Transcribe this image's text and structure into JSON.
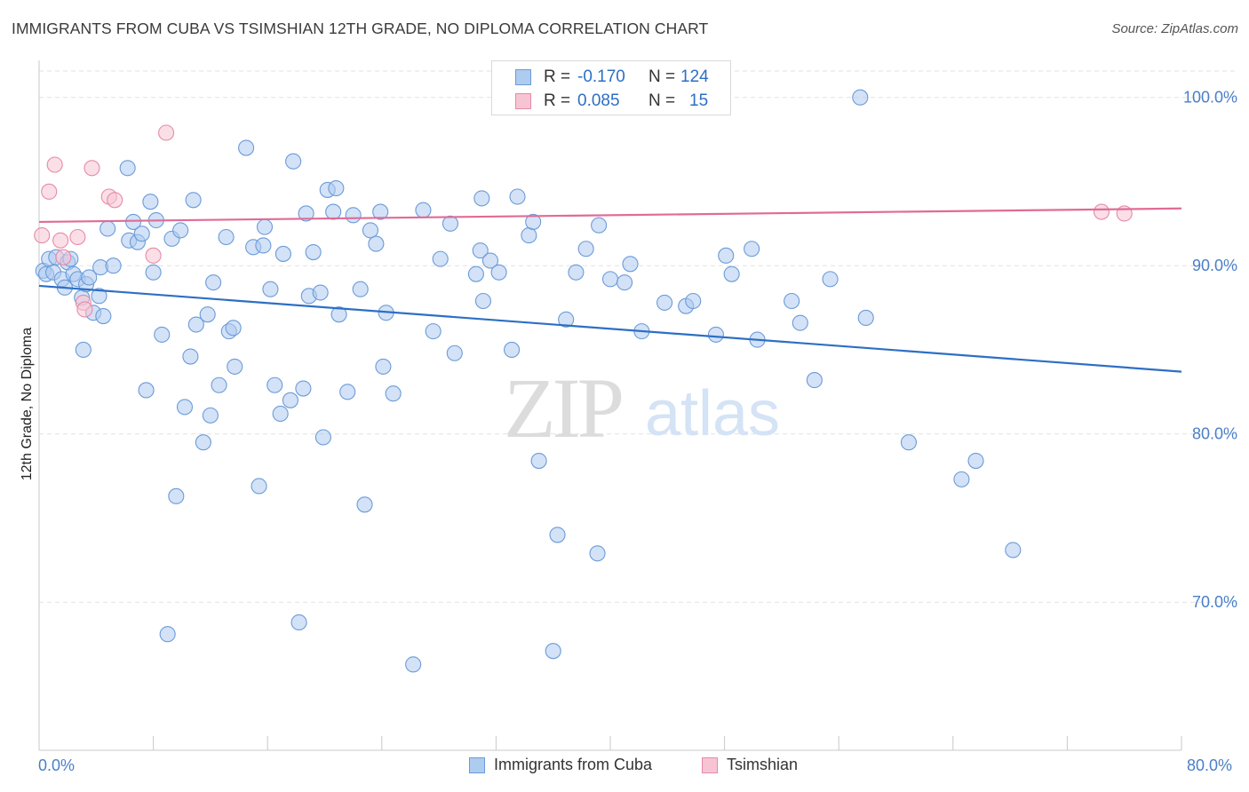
{
  "title": "IMMIGRANTS FROM CUBA VS TSIMSHIAN 12TH GRADE, NO DIPLOMA CORRELATION CHART",
  "source": "Source: ZipAtlas.com",
  "watermark": {
    "zip": "ZIP",
    "atlas": "atlas"
  },
  "legend_box": {
    "rows": [
      {
        "r_label": "R =",
        "r_value": "-0.170",
        "n_label": "N =",
        "n_value": "124",
        "color": "#aecbf0",
        "border": "#6b9bd8"
      },
      {
        "r_label": "R =",
        "r_value": "0.085",
        "n_label": "N =",
        "n_value": "15",
        "color": "#f7c4d4",
        "border": "#e68aa8"
      }
    ]
  },
  "chart_data": {
    "type": "scatter",
    "title": "IMMIGRANTS FROM CUBA VS TSIMSHIAN 12TH GRADE, NO DIPLOMA CORRELATION CHART",
    "xlabel": "",
    "ylabel": "12th Grade, No Diploma",
    "xlim": [
      0,
      80
    ],
    "ylim": [
      61.2,
      102.2
    ],
    "x_tick_labels": [
      "0.0%",
      "80.0%"
    ],
    "y_ticks": [
      70,
      80,
      90,
      100
    ],
    "y_tick_labels": [
      "70.0%",
      "80.0%",
      "90.0%",
      "100.0%"
    ],
    "grid": true,
    "legend_position": "bottom",
    "series": [
      {
        "name": "Immigrants from Cuba",
        "color": "#aecbf0",
        "stroke": "#6b9bd8",
        "line_color": "#2d6fc4",
        "trend": {
          "x": [
            0,
            80
          ],
          "y": [
            88.8,
            83.7
          ]
        },
        "points": [
          [
            0.3,
            89.7
          ],
          [
            0.5,
            89.5
          ],
          [
            0.7,
            90.4
          ],
          [
            1.0,
            89.6
          ],
          [
            1.2,
            90.5
          ],
          [
            1.6,
            89.2
          ],
          [
            1.8,
            88.7
          ],
          [
            2.0,
            90.2
          ],
          [
            2.2,
            90.4
          ],
          [
            2.4,
            89.5
          ],
          [
            2.7,
            89.2
          ],
          [
            3.0,
            88.1
          ],
          [
            3.1,
            85.0
          ],
          [
            3.3,
            88.9
          ],
          [
            3.5,
            89.3
          ],
          [
            3.8,
            87.2
          ],
          [
            4.2,
            88.2
          ],
          [
            4.3,
            89.9
          ],
          [
            4.5,
            87.0
          ],
          [
            4.8,
            92.2
          ],
          [
            5.2,
            90.0
          ],
          [
            6.2,
            95.8
          ],
          [
            6.3,
            91.5
          ],
          [
            6.6,
            92.6
          ],
          [
            6.9,
            91.4
          ],
          [
            7.2,
            91.9
          ],
          [
            7.5,
            82.6
          ],
          [
            7.8,
            93.8
          ],
          [
            8.0,
            89.6
          ],
          [
            8.2,
            92.7
          ],
          [
            8.6,
            85.9
          ],
          [
            9.0,
            68.1
          ],
          [
            9.3,
            91.6
          ],
          [
            9.6,
            76.3
          ],
          [
            9.9,
            92.1
          ],
          [
            10.2,
            81.6
          ],
          [
            10.6,
            84.6
          ],
          [
            10.8,
            93.9
          ],
          [
            11.0,
            86.5
          ],
          [
            11.5,
            79.5
          ],
          [
            11.8,
            87.1
          ],
          [
            12.0,
            81.1
          ],
          [
            12.2,
            89.0
          ],
          [
            12.6,
            82.9
          ],
          [
            13.1,
            91.7
          ],
          [
            13.3,
            86.1
          ],
          [
            13.6,
            86.3
          ],
          [
            13.7,
            84.0
          ],
          [
            14.5,
            97.0
          ],
          [
            15.0,
            91.1
          ],
          [
            15.4,
            76.9
          ],
          [
            15.7,
            91.2
          ],
          [
            15.8,
            92.3
          ],
          [
            16.2,
            88.6
          ],
          [
            16.5,
            82.9
          ],
          [
            16.9,
            81.2
          ],
          [
            17.1,
            90.7
          ],
          [
            17.6,
            82.0
          ],
          [
            17.8,
            96.2
          ],
          [
            18.2,
            68.8
          ],
          [
            18.5,
            82.7
          ],
          [
            18.7,
            93.1
          ],
          [
            18.9,
            88.2
          ],
          [
            19.2,
            90.8
          ],
          [
            19.7,
            88.4
          ],
          [
            19.9,
            79.8
          ],
          [
            20.2,
            94.5
          ],
          [
            20.6,
            93.2
          ],
          [
            20.8,
            94.6
          ],
          [
            21.0,
            87.1
          ],
          [
            21.6,
            82.5
          ],
          [
            22.0,
            93.0
          ],
          [
            22.5,
            88.6
          ],
          [
            22.8,
            75.8
          ],
          [
            23.2,
            92.1
          ],
          [
            23.6,
            91.3
          ],
          [
            23.9,
            93.2
          ],
          [
            24.1,
            84.0
          ],
          [
            24.3,
            87.2
          ],
          [
            24.8,
            82.4
          ],
          [
            26.2,
            66.3
          ],
          [
            26.9,
            93.3
          ],
          [
            27.6,
            86.1
          ],
          [
            28.1,
            90.4
          ],
          [
            28.8,
            92.5
          ],
          [
            29.1,
            84.8
          ],
          [
            30.6,
            89.5
          ],
          [
            30.9,
            90.9
          ],
          [
            31.0,
            94.0
          ],
          [
            31.1,
            87.9
          ],
          [
            31.6,
            90.3
          ],
          [
            32.2,
            89.6
          ],
          [
            33.1,
            85.0
          ],
          [
            33.5,
            94.1
          ],
          [
            34.3,
            91.8
          ],
          [
            34.6,
            92.6
          ],
          [
            35.0,
            78.4
          ],
          [
            36.0,
            67.1
          ],
          [
            36.3,
            74.0
          ],
          [
            36.9,
            86.8
          ],
          [
            37.6,
            89.6
          ],
          [
            38.3,
            91.0
          ],
          [
            39.1,
            72.9
          ],
          [
            39.2,
            92.4
          ],
          [
            40.0,
            89.2
          ],
          [
            41.0,
            89.0
          ],
          [
            41.4,
            90.1
          ],
          [
            42.2,
            86.1
          ],
          [
            43.8,
            87.8
          ],
          [
            45.3,
            87.6
          ],
          [
            45.8,
            87.9
          ],
          [
            47.4,
            85.9
          ],
          [
            48.1,
            90.6
          ],
          [
            48.5,
            89.5
          ],
          [
            49.9,
            91.0
          ],
          [
            50.3,
            85.6
          ],
          [
            52.7,
            87.9
          ],
          [
            53.3,
            86.6
          ],
          [
            54.3,
            83.2
          ],
          [
            55.4,
            89.2
          ],
          [
            57.5,
            100.0
          ],
          [
            57.9,
            86.9
          ],
          [
            60.9,
            79.5
          ],
          [
            64.6,
            77.3
          ],
          [
            65.6,
            78.4
          ],
          [
            68.2,
            73.1
          ]
        ]
      },
      {
        "name": "Tsimshian",
        "color": "#f7c4d4",
        "stroke": "#e68aa8",
        "line_color": "#e06b96",
        "trend": {
          "x": [
            0,
            80
          ],
          "y": [
            92.6,
            93.4
          ]
        },
        "points": [
          [
            0.2,
            91.8
          ],
          [
            0.7,
            94.4
          ],
          [
            1.1,
            96.0
          ],
          [
            1.5,
            91.5
          ],
          [
            1.7,
            90.5
          ],
          [
            2.7,
            91.7
          ],
          [
            3.1,
            87.8
          ],
          [
            3.2,
            87.4
          ],
          [
            3.7,
            95.8
          ],
          [
            4.9,
            94.1
          ],
          [
            5.3,
            93.9
          ],
          [
            8.0,
            90.6
          ],
          [
            8.9,
            97.9
          ],
          [
            74.4,
            93.2
          ],
          [
            76.0,
            93.1
          ]
        ]
      }
    ]
  },
  "bottom_legend": [
    {
      "label": "Immigrants from Cuba",
      "color": "#aecbf0",
      "border": "#6b9bd8"
    },
    {
      "label": "Tsimshian",
      "color": "#f7c4d4",
      "border": "#e68aa8"
    }
  ]
}
